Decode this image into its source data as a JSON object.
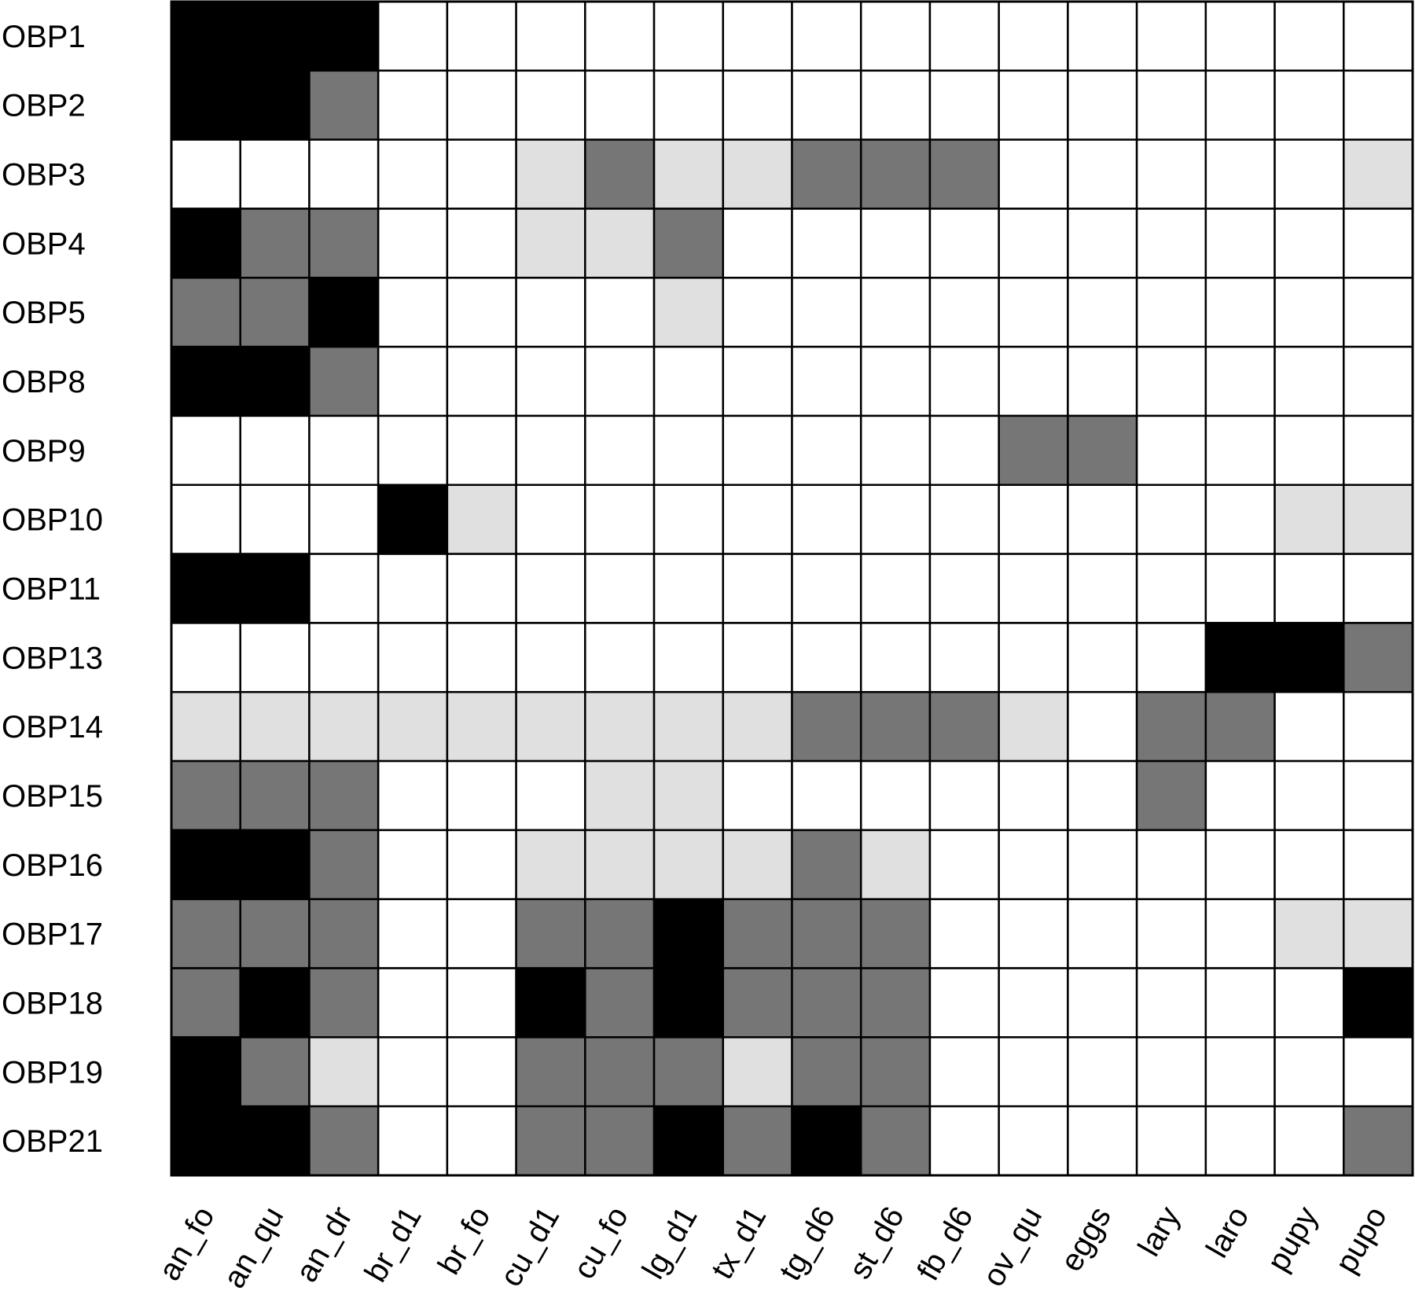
{
  "chart_data": {
    "type": "heatmap",
    "title": "",
    "xlabel": "",
    "ylabel": "",
    "levels": [
      0,
      1,
      2,
      3
    ],
    "level_colors": [
      "#ffffff",
      "#e0e0e0",
      "#767676",
      "#000000"
    ],
    "rows": [
      "OBP1",
      "OBP2",
      "OBP3",
      "OBP4",
      "OBP5",
      "OBP8",
      "OBP9",
      "OBP10",
      "OBP11",
      "OBP13",
      "OBP14",
      "OBP15",
      "OBP16",
      "OBP17",
      "OBP18",
      "OBP19",
      "OBP21"
    ],
    "columns": [
      "an_fo",
      "an_qu",
      "an_dr",
      "br_d1",
      "br_fo",
      "cu_d1",
      "cu_fo",
      "lg_d1",
      "tx_d1",
      "tg_d6",
      "st_d6",
      "fb_d6",
      "ov_qu",
      "eggs",
      "lary",
      "laro",
      "pupy",
      "pupo"
    ],
    "values": [
      [
        3,
        3,
        3,
        0,
        0,
        0,
        0,
        0,
        0,
        0,
        0,
        0,
        0,
        0,
        0,
        0,
        0,
        0
      ],
      [
        3,
        3,
        2,
        0,
        0,
        0,
        0,
        0,
        0,
        0,
        0,
        0,
        0,
        0,
        0,
        0,
        0,
        0
      ],
      [
        0,
        0,
        0,
        0,
        0,
        1,
        2,
        1,
        1,
        2,
        2,
        2,
        0,
        0,
        0,
        0,
        0,
        1
      ],
      [
        3,
        2,
        2,
        0,
        0,
        1,
        1,
        2,
        0,
        0,
        0,
        0,
        0,
        0,
        0,
        0,
        0,
        0
      ],
      [
        2,
        2,
        3,
        0,
        0,
        0,
        0,
        1,
        0,
        0,
        0,
        0,
        0,
        0,
        0,
        0,
        0,
        0
      ],
      [
        3,
        3,
        2,
        0,
        0,
        0,
        0,
        0,
        0,
        0,
        0,
        0,
        0,
        0,
        0,
        0,
        0,
        0
      ],
      [
        0,
        0,
        0,
        0,
        0,
        0,
        0,
        0,
        0,
        0,
        0,
        0,
        2,
        2,
        0,
        0,
        0,
        0
      ],
      [
        0,
        0,
        0,
        3,
        1,
        0,
        0,
        0,
        0,
        0,
        0,
        0,
        0,
        0,
        0,
        0,
        1,
        1
      ],
      [
        3,
        3,
        0,
        0,
        0,
        0,
        0,
        0,
        0,
        0,
        0,
        0,
        0,
        0,
        0,
        0,
        0,
        0
      ],
      [
        0,
        0,
        0,
        0,
        0,
        0,
        0,
        0,
        0,
        0,
        0,
        0,
        0,
        0,
        0,
        3,
        3,
        2
      ],
      [
        1,
        1,
        1,
        1,
        1,
        1,
        1,
        1,
        1,
        2,
        2,
        2,
        1,
        0,
        2,
        2,
        0,
        0
      ],
      [
        2,
        2,
        2,
        0,
        0,
        0,
        1,
        1,
        0,
        0,
        0,
        0,
        0,
        0,
        2,
        0,
        0,
        0
      ],
      [
        3,
        3,
        2,
        0,
        0,
        1,
        1,
        1,
        1,
        2,
        1,
        0,
        0,
        0,
        0,
        0,
        0,
        0
      ],
      [
        2,
        2,
        2,
        0,
        0,
        2,
        2,
        3,
        2,
        2,
        2,
        0,
        0,
        0,
        0,
        0,
        1,
        1
      ],
      [
        2,
        3,
        2,
        0,
        0,
        3,
        2,
        3,
        2,
        2,
        2,
        0,
        0,
        0,
        0,
        0,
        0,
        3
      ],
      [
        3,
        2,
        1,
        0,
        0,
        2,
        2,
        2,
        1,
        2,
        2,
        0,
        0,
        0,
        0,
        0,
        0,
        0
      ],
      [
        3,
        3,
        2,
        0,
        0,
        2,
        2,
        3,
        2,
        3,
        2,
        0,
        0,
        0,
        0,
        0,
        0,
        2
      ]
    ],
    "grid": true,
    "legend": "none"
  }
}
